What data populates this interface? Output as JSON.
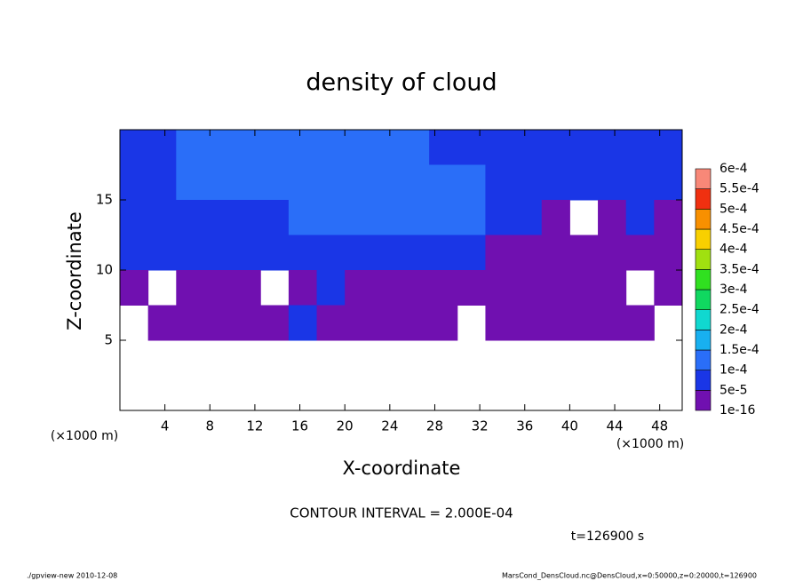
{
  "chart_data": {
    "type": "contour",
    "title": "density of cloud",
    "xlabel": "X-coordinate",
    "ylabel": "Z-coordinate",
    "xunit": "(×1000 m)",
    "yunit": "(×1000 m)",
    "annotation": "CONTOUR INTERVAL = 2.000E-04",
    "time_label": "t=126900 s",
    "footer_left": "./gpview-new  2010-12-08",
    "footer_right": "MarsCond_DensCloud.nc@DensCloud,x=0:50000,z=0:20000,t=126900",
    "xlim": [
      0,
      50
    ],
    "ylim": [
      0,
      20
    ],
    "xticks": [
      4,
      8,
      12,
      16,
      20,
      24,
      28,
      32,
      36,
      40,
      44,
      48
    ],
    "yticks": [
      5,
      10,
      15
    ],
    "x": [
      1.25,
      3.75,
      6.25,
      8.75,
      11.25,
      13.75,
      16.25,
      18.75,
      21.25,
      23.75,
      26.25,
      28.75,
      31.25,
      33.75,
      36.25,
      38.75,
      41.25,
      43.75,
      46.25,
      48.75
    ],
    "y": [
      18.75,
      16.25,
      13.75,
      11.25,
      8.75,
      6.25,
      3.75,
      1.25
    ],
    "z": [
      [
        7e-05,
        7e-05,
        0.00012,
        0.00012,
        0.00012,
        0.00012,
        0.00012,
        0.00012,
        0.00012,
        0.00012,
        0.00012,
        7e-05,
        7e-05,
        7e-05,
        7e-05,
        7e-05,
        7e-05,
        7e-05,
        7e-05,
        7e-05
      ],
      [
        7e-05,
        7e-05,
        0.00012,
        0.00012,
        0.00012,
        0.00012,
        0.00012,
        0.00012,
        0.00012,
        0.00012,
        0.00012,
        0.00012,
        0.00012,
        7e-05,
        7e-05,
        7e-05,
        7e-05,
        7e-05,
        7e-05,
        7e-05
      ],
      [
        7e-05,
        7e-05,
        7e-05,
        7e-05,
        7e-05,
        7e-05,
        0.00012,
        0.00012,
        0.00012,
        0.00012,
        0.00012,
        0.00012,
        0.00012,
        7e-05,
        7e-05,
        3e-05,
        null,
        3e-05,
        7e-05,
        3e-05
      ],
      [
        7e-05,
        7e-05,
        7e-05,
        7e-05,
        7e-05,
        7e-05,
        7e-05,
        7e-05,
        7e-05,
        7e-05,
        7e-05,
        7e-05,
        7e-05,
        3e-05,
        3e-05,
        3e-05,
        3e-05,
        3e-05,
        3e-05,
        3e-05
      ],
      [
        3e-05,
        null,
        3e-05,
        3e-05,
        3e-05,
        null,
        3e-05,
        7e-05,
        3e-05,
        3e-05,
        3e-05,
        3e-05,
        3e-05,
        3e-05,
        3e-05,
        3e-05,
        3e-05,
        3e-05,
        null,
        3e-05
      ],
      [
        null,
        3e-05,
        3e-05,
        3e-05,
        3e-05,
        3e-05,
        7e-05,
        3e-05,
        3e-05,
        3e-05,
        3e-05,
        3e-05,
        null,
        3e-05,
        3e-05,
        3e-05,
        3e-05,
        3e-05,
        3e-05,
        null
      ],
      [
        null,
        null,
        null,
        null,
        null,
        null,
        null,
        null,
        null,
        null,
        null,
        null,
        null,
        null,
        null,
        null,
        null,
        null,
        null,
        null
      ],
      [
        null,
        null,
        null,
        null,
        null,
        null,
        null,
        null,
        null,
        null,
        null,
        null,
        null,
        null,
        null,
        null,
        null,
        null,
        null,
        null
      ]
    ],
    "levels": [
      {
        "value": 1e-16,
        "label": "1e-16"
      },
      {
        "value": 5e-05,
        "label": "5e-5"
      },
      {
        "value": 0.0001,
        "label": "1e-4"
      },
      {
        "value": 0.00015,
        "label": "1.5e-4"
      },
      {
        "value": 0.0002,
        "label": "2e-4"
      },
      {
        "value": 0.00025,
        "label": "2.5e-4"
      },
      {
        "value": 0.0003,
        "label": "3e-4"
      },
      {
        "value": 0.00035,
        "label": "3.5e-4"
      },
      {
        "value": 0.0004,
        "label": "4e-4"
      },
      {
        "value": 0.00045,
        "label": "4.5e-4"
      },
      {
        "value": 0.0005,
        "label": "5e-4"
      },
      {
        "value": 0.00055,
        "label": "5.5e-4"
      },
      {
        "value": 0.0006,
        "label": "6e-4"
      }
    ],
    "colors": [
      "#7010b0",
      "#1a36e6",
      "#2a6ef8",
      "#18b0f0",
      "#10d8d0",
      "#10d860",
      "#30e020",
      "#a0e010",
      "#f8d000",
      "#f89000",
      "#f03010",
      "#f88878"
    ]
  }
}
